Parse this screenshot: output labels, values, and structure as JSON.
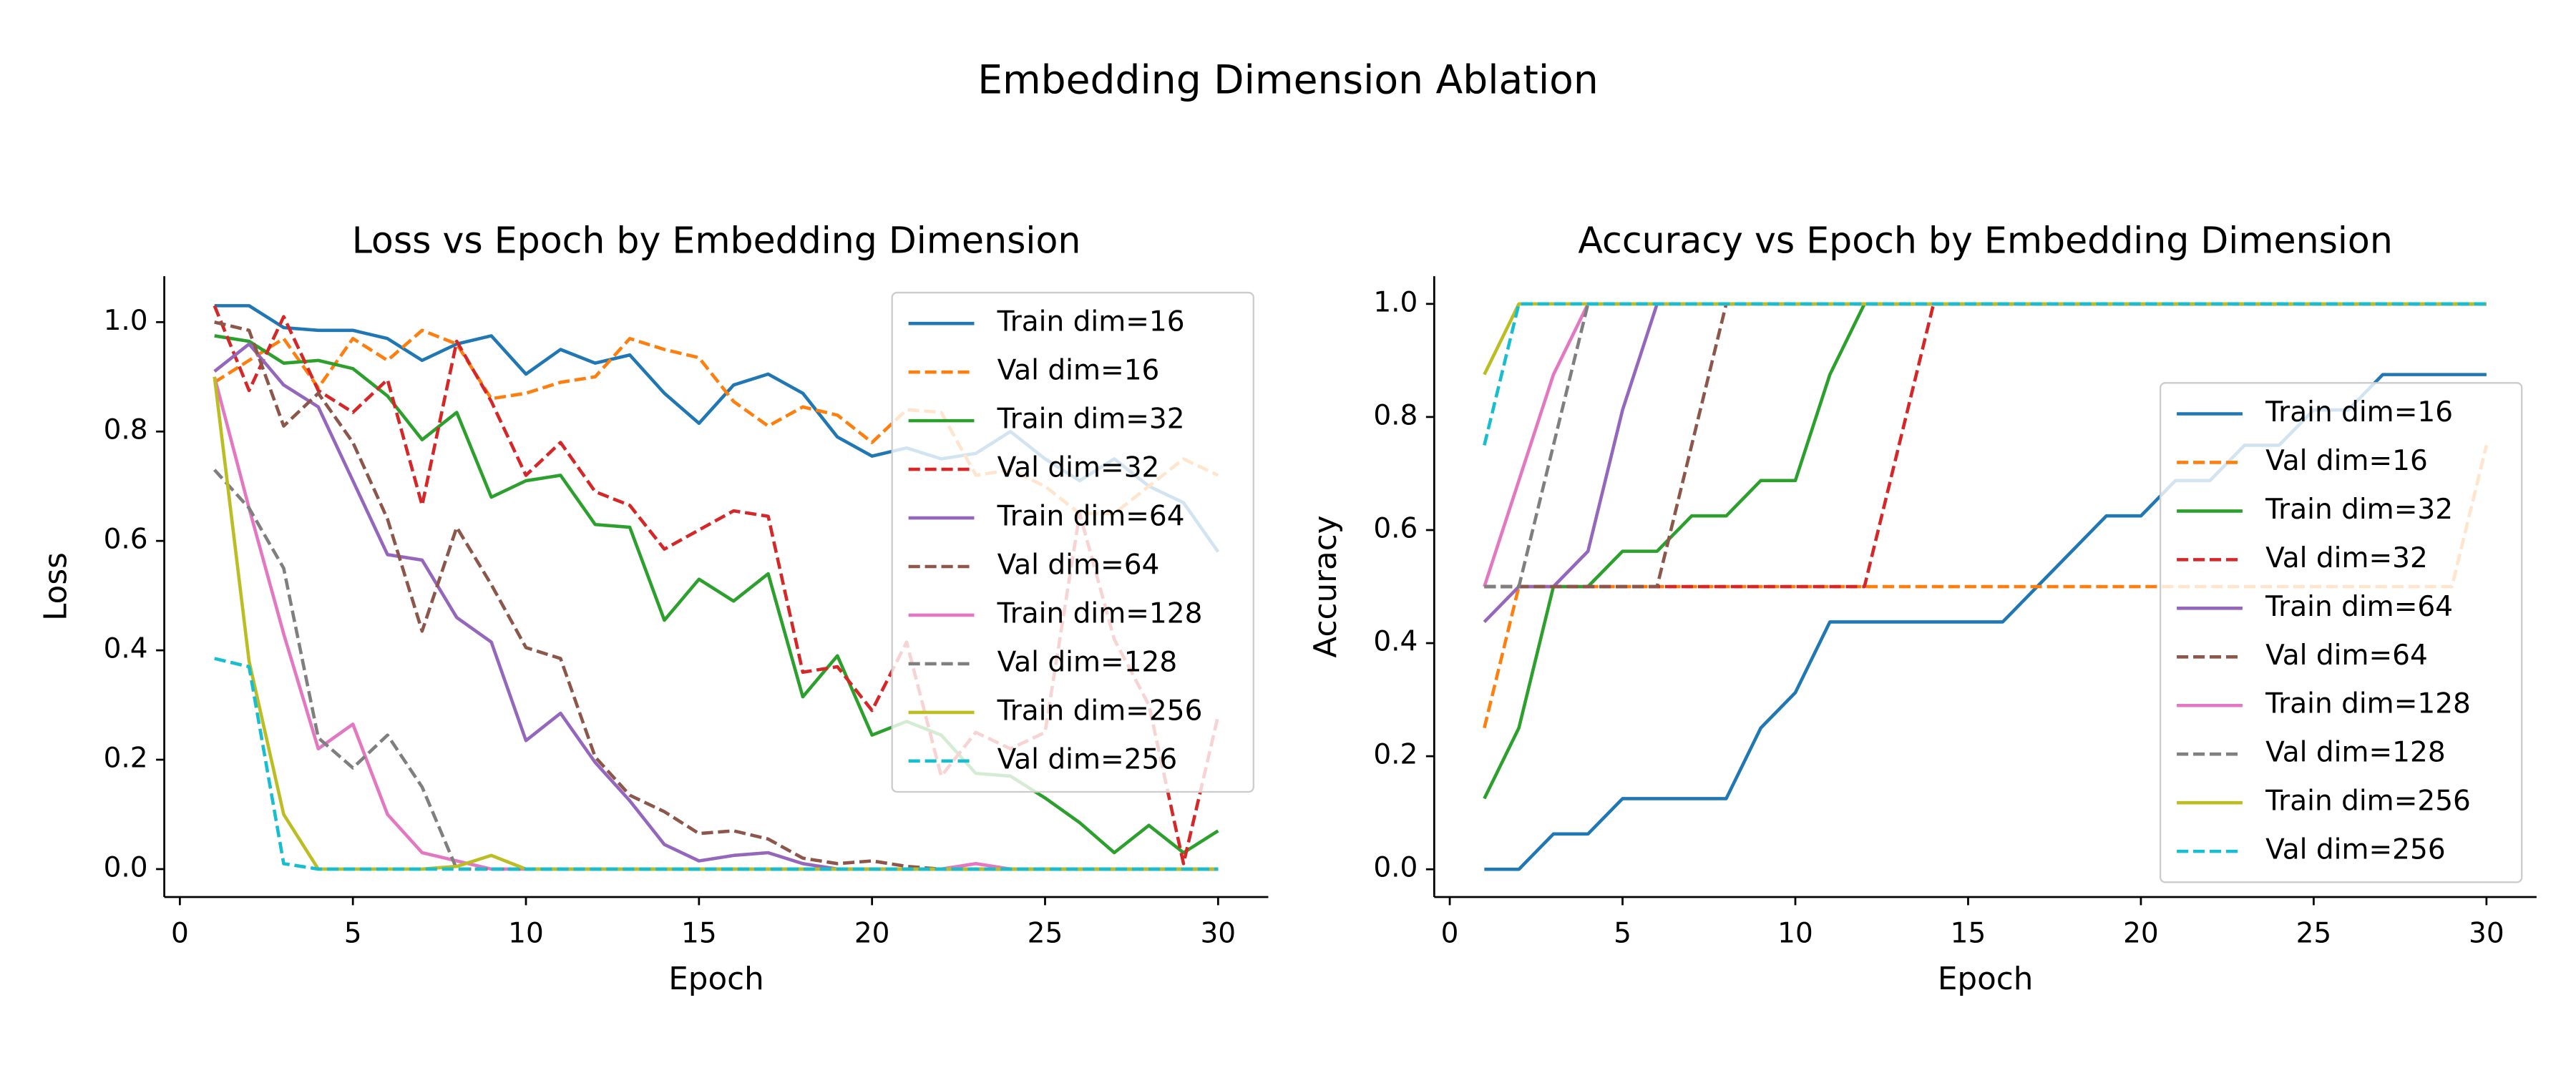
{
  "title": "Embedding Dimension Ablation",
  "chart_data": [
    {
      "type": "line",
      "title": "Loss vs Epoch by Embedding Dimension",
      "xlabel": "Epoch",
      "ylabel": "Loss",
      "x": [
        1,
        2,
        3,
        4,
        5,
        6,
        7,
        8,
        9,
        10,
        11,
        12,
        13,
        14,
        15,
        16,
        17,
        18,
        19,
        20,
        21,
        22,
        23,
        24,
        25,
        26,
        27,
        28,
        29,
        30
      ],
      "xlim": [
        -0.45,
        31.45
      ],
      "ylim": [
        -0.051,
        1.084
      ],
      "xticks": [
        0,
        5,
        10,
        15,
        20,
        25,
        30
      ],
      "yticks": [
        {
          "value": 0,
          "label": "0.0"
        },
        0.2,
        0.4,
        0.6,
        0.8,
        {
          "value": 1,
          "label": "1.0"
        }
      ],
      "legend": "upper right",
      "series": [
        {
          "name": "Train dim=16",
          "color": "#1f77b4",
          "linestyle": "solid",
          "values": [
            1.03,
            1.03,
            0.99,
            0.985,
            0.985,
            0.97,
            0.93,
            0.96,
            0.975,
            0.905,
            0.95,
            0.925,
            0.94,
            0.87,
            0.815,
            0.885,
            0.905,
            0.87,
            0.79,
            0.755,
            0.77,
            0.75,
            0.76,
            0.8,
            0.75,
            0.71,
            0.75,
            0.7,
            0.67,
            0.58
          ]
        },
        {
          "name": "Val dim=16",
          "color": "#ff7f0e",
          "linestyle": "dashed",
          "values": [
            0.89,
            0.93,
            0.97,
            0.88,
            0.97,
            0.93,
            0.985,
            0.96,
            0.86,
            0.87,
            0.89,
            0.9,
            0.97,
            0.95,
            0.935,
            0.855,
            0.81,
            0.845,
            0.83,
            0.78,
            0.84,
            0.835,
            0.72,
            0.73,
            0.7,
            0.65,
            0.65,
            0.7,
            0.75,
            0.72
          ]
        },
        {
          "name": "Train dim=32",
          "color": "#2ca02c",
          "linestyle": "solid",
          "values": [
            0.975,
            0.965,
            0.925,
            0.93,
            0.915,
            0.865,
            0.785,
            0.835,
            0.68,
            0.71,
            0.72,
            0.63,
            0.625,
            0.455,
            0.53,
            0.49,
            0.54,
            0.315,
            0.39,
            0.245,
            0.27,
            0.245,
            0.175,
            0.17,
            0.13,
            0.085,
            0.03,
            0.08,
            0.03,
            0.07
          ]
        },
        {
          "name": "Val dim=32",
          "color": "#d62728",
          "linestyle": "dashed",
          "values": [
            1.03,
            0.875,
            1.01,
            0.875,
            0.835,
            0.895,
            0.665,
            0.965,
            0.855,
            0.72,
            0.78,
            0.69,
            0.665,
            0.585,
            0.62,
            0.655,
            0.645,
            0.36,
            0.37,
            0.29,
            0.415,
            0.17,
            0.25,
            0.22,
            0.25,
            0.65,
            0.42,
            0.3,
            0.01,
            0.28
          ]
        },
        {
          "name": "Train dim=64",
          "color": "#9467bd",
          "linestyle": "solid",
          "values": [
            0.91,
            0.96,
            0.885,
            0.845,
            0.71,
            0.575,
            0.565,
            0.46,
            0.415,
            0.235,
            0.285,
            0.195,
            0.125,
            0.045,
            0.015,
            0.025,
            0.03,
            0.01,
            0,
            0,
            0,
            0,
            0,
            0,
            0,
            0,
            0,
            0,
            0,
            0
          ]
        },
        {
          "name": "Val dim=64",
          "color": "#8c564b",
          "linestyle": "dashed",
          "values": [
            1.0,
            0.985,
            0.81,
            0.87,
            0.78,
            0.64,
            0.435,
            0.625,
            0.52,
            0.405,
            0.385,
            0.205,
            0.135,
            0.105,
            0.065,
            0.07,
            0.055,
            0.02,
            0.01,
            0.015,
            0.005,
            0,
            0,
            0,
            0,
            0,
            0,
            0,
            0,
            0
          ]
        },
        {
          "name": "Train dim=128",
          "color": "#e377c2",
          "linestyle": "solid",
          "values": [
            0.9,
            0.66,
            0.43,
            0.22,
            0.265,
            0.1,
            0.03,
            0.015,
            0,
            0,
            0,
            0,
            0,
            0,
            0,
            0,
            0,
            0,
            0,
            0,
            0,
            0,
            0.01,
            0,
            0,
            0,
            0,
            0,
            0,
            0
          ]
        },
        {
          "name": "Val dim=128",
          "color": "#7f7f7f",
          "linestyle": "dashed",
          "values": [
            0.73,
            0.66,
            0.55,
            0.24,
            0.185,
            0.245,
            0.15,
            0,
            0,
            0,
            0,
            0,
            0,
            0,
            0,
            0,
            0,
            0,
            0,
            0,
            0,
            0,
            0,
            0,
            0,
            0,
            0,
            0,
            0,
            0
          ]
        },
        {
          "name": "Train dim=256",
          "color": "#bcbd22",
          "linestyle": "solid",
          "values": [
            0.9,
            0.38,
            0.1,
            0,
            0,
            0,
            0,
            0.005,
            0.025,
            0,
            0,
            0,
            0,
            0,
            0,
            0,
            0,
            0,
            0,
            0,
            0,
            0,
            0,
            0,
            0,
            0,
            0,
            0,
            0,
            0
          ]
        },
        {
          "name": "Val dim=256",
          "color": "#17becf",
          "linestyle": "dashed",
          "values": [
            0.385,
            0.37,
            0.01,
            0,
            0,
            0,
            0,
            0,
            0,
            0,
            0,
            0,
            0,
            0,
            0,
            0,
            0,
            0,
            0,
            0,
            0,
            0,
            0,
            0,
            0,
            0,
            0,
            0,
            0,
            0
          ]
        }
      ]
    },
    {
      "type": "line",
      "title": "Accuracy vs Epoch by Embedding Dimension",
      "xlabel": "Epoch",
      "ylabel": "Accuracy",
      "x": [
        1,
        2,
        3,
        4,
        5,
        6,
        7,
        8,
        9,
        10,
        11,
        12,
        13,
        14,
        15,
        16,
        17,
        18,
        19,
        20,
        21,
        22,
        23,
        24,
        25,
        26,
        27,
        28,
        29,
        30
      ],
      "xlim": [
        -0.45,
        31.45
      ],
      "ylim": [
        -0.049,
        1.049
      ],
      "xticks": [
        0,
        5,
        10,
        15,
        20,
        25,
        30
      ],
      "yticks": [
        {
          "value": 0,
          "label": "0.0"
        },
        0.2,
        0.4,
        0.6,
        0.8,
        {
          "value": 1,
          "label": "1.0"
        }
      ],
      "legend": "lower right",
      "series": [
        {
          "name": "Train dim=16",
          "color": "#1f77b4",
          "linestyle": "solid",
          "values": [
            0,
            0,
            0.0625,
            0.0625,
            0.125,
            0.125,
            0.125,
            0.125,
            0.25,
            0.3125,
            0.4375,
            0.4375,
            0.4375,
            0.4375,
            0.4375,
            0.4375,
            0.5,
            0.5625,
            0.625,
            0.625,
            0.6875,
            0.6875,
            0.75,
            0.75,
            0.8125,
            0.8125,
            0.875,
            0.875,
            0.875,
            0.875
          ]
        },
        {
          "name": "Val dim=16",
          "color": "#ff7f0e",
          "linestyle": "dashed",
          "values": [
            0.25,
            0.5,
            0.5,
            0.5,
            0.5,
            0.5,
            0.5,
            0.5,
            0.5,
            0.5,
            0.5,
            0.5,
            0.5,
            0.5,
            0.5,
            0.5,
            0.5,
            0.5,
            0.5,
            0.5,
            0.5,
            0.5,
            0.5,
            0.5,
            0.5,
            0.5,
            0.5,
            0.5,
            0.5,
            0.75
          ]
        },
        {
          "name": "Train dim=32",
          "color": "#2ca02c",
          "linestyle": "solid",
          "values": [
            0.125,
            0.25,
            0.5,
            0.5,
            0.5625,
            0.5625,
            0.625,
            0.625,
            0.6875,
            0.6875,
            0.875,
            1,
            1,
            1,
            1,
            1,
            1,
            1,
            1,
            1,
            1,
            1,
            1,
            1,
            1,
            1,
            1,
            1,
            1,
            1
          ]
        },
        {
          "name": "Val dim=32",
          "color": "#d62728",
          "linestyle": "dashed",
          "values": [
            0.5,
            0.5,
            0.5,
            0.5,
            0.5,
            0.5,
            0.5,
            0.5,
            0.5,
            0.5,
            0.5,
            0.5,
            0.75,
            1,
            1,
            1,
            1,
            1,
            1,
            1,
            1,
            1,
            1,
            1,
            1,
            1,
            1,
            1,
            1,
            1
          ]
        },
        {
          "name": "Train dim=64",
          "color": "#9467bd",
          "linestyle": "solid",
          "values": [
            0.4375,
            0.5,
            0.5,
            0.5625,
            0.8125,
            1,
            1,
            1,
            1,
            1,
            1,
            1,
            1,
            1,
            1,
            1,
            1,
            1,
            1,
            1,
            1,
            1,
            1,
            1,
            1,
            1,
            1,
            1,
            1,
            1
          ]
        },
        {
          "name": "Val dim=64",
          "color": "#8c564b",
          "linestyle": "dashed",
          "values": [
            0.5,
            0.5,
            0.5,
            0.5,
            0.5,
            0.5,
            0.75,
            1,
            1,
            1,
            1,
            1,
            1,
            1,
            1,
            1,
            1,
            1,
            1,
            1,
            1,
            1,
            1,
            1,
            1,
            1,
            1,
            1,
            1,
            1
          ]
        },
        {
          "name": "Train dim=128",
          "color": "#e377c2",
          "linestyle": "solid",
          "values": [
            0.5,
            0.6875,
            0.875,
            1,
            1,
            1,
            1,
            1,
            1,
            1,
            1,
            1,
            1,
            1,
            1,
            1,
            1,
            1,
            1,
            1,
            1,
            1,
            1,
            1,
            1,
            1,
            1,
            1,
            1,
            1
          ]
        },
        {
          "name": "Val dim=128",
          "color": "#7f7f7f",
          "linestyle": "dashed",
          "values": [
            0.5,
            0.5,
            0.75,
            1,
            1,
            1,
            1,
            1,
            1,
            1,
            1,
            1,
            1,
            1,
            1,
            1,
            1,
            1,
            1,
            1,
            1,
            1,
            1,
            1,
            1,
            1,
            1,
            1,
            1,
            1
          ]
        },
        {
          "name": "Train dim=256",
          "color": "#bcbd22",
          "linestyle": "solid",
          "values": [
            0.875,
            1,
            1,
            1,
            1,
            1,
            1,
            1,
            1,
            1,
            1,
            1,
            1,
            1,
            1,
            1,
            1,
            1,
            1,
            1,
            1,
            1,
            1,
            1,
            1,
            1,
            1,
            1,
            1,
            1
          ]
        },
        {
          "name": "Val dim=256",
          "color": "#17becf",
          "linestyle": "dashed",
          "values": [
            0.75,
            1,
            1,
            1,
            1,
            1,
            1,
            1,
            1,
            1,
            1,
            1,
            1,
            1,
            1,
            1,
            1,
            1,
            1,
            1,
            1,
            1,
            1,
            1,
            1,
            1,
            1,
            1,
            1,
            1
          ]
        }
      ]
    }
  ]
}
